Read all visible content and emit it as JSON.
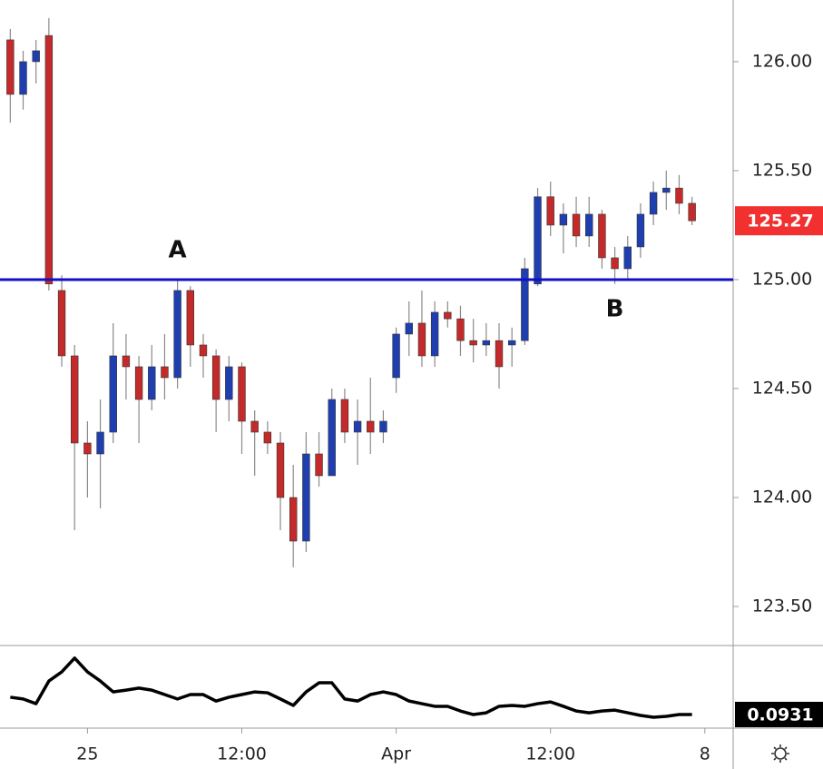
{
  "chart_data": {
    "type": "candlestick",
    "x": [
      -6,
      -5,
      -4,
      -3,
      -2,
      -1,
      0,
      1,
      2,
      3,
      4,
      5,
      6,
      7,
      8,
      9,
      10,
      11,
      12,
      13,
      14,
      15,
      16,
      17,
      18,
      19,
      20,
      21,
      22,
      23,
      24,
      25,
      26,
      27,
      28,
      29,
      30,
      31,
      32,
      33,
      34,
      35,
      36,
      37,
      38,
      39,
      40,
      41,
      42,
      43,
      44,
      45,
      46,
      47
    ],
    "open": [
      126.1,
      125.85,
      126.0,
      126.12,
      124.95,
      124.65,
      124.25,
      124.2,
      124.3,
      124.65,
      124.6,
      124.45,
      124.6,
      124.55,
      124.95,
      124.7,
      124.65,
      124.45,
      124.6,
      124.35,
      124.3,
      124.25,
      124.0,
      123.8,
      124.2,
      124.1,
      124.45,
      124.3,
      124.35,
      124.3,
      124.55,
      124.75,
      124.8,
      124.65,
      124.85,
      124.82,
      124.72,
      124.7,
      124.72,
      124.7,
      124.72,
      124.98,
      125.38,
      125.25,
      125.3,
      125.2,
      125.3,
      125.1,
      125.05,
      125.15,
      125.3,
      125.4,
      125.42,
      125.35
    ],
    "high": [
      126.15,
      126.05,
      126.1,
      126.2,
      125.02,
      124.7,
      124.35,
      124.45,
      124.8,
      124.75,
      124.65,
      124.7,
      124.75,
      125.0,
      124.97,
      124.75,
      124.68,
      124.65,
      124.62,
      124.4,
      124.35,
      124.3,
      124.15,
      124.3,
      124.3,
      124.5,
      124.5,
      124.45,
      124.55,
      124.4,
      124.78,
      124.9,
      124.95,
      124.9,
      124.9,
      124.88,
      124.82,
      124.8,
      124.8,
      124.78,
      125.1,
      125.42,
      125.45,
      125.35,
      125.38,
      125.38,
      125.32,
      125.15,
      125.2,
      125.35,
      125.45,
      125.5,
      125.48,
      125.38
    ],
    "low": [
      125.72,
      125.78,
      125.9,
      124.95,
      124.6,
      123.85,
      124.0,
      123.95,
      124.25,
      124.45,
      124.25,
      124.4,
      124.45,
      124.5,
      124.6,
      124.55,
      124.3,
      124.35,
      124.2,
      124.1,
      124.2,
      123.85,
      123.68,
      123.75,
      124.05,
      124.1,
      124.25,
      124.15,
      124.2,
      124.25,
      124.48,
      124.65,
      124.6,
      124.6,
      124.78,
      124.65,
      124.62,
      124.65,
      124.5,
      124.6,
      124.7,
      124.97,
      125.2,
      125.12,
      125.15,
      125.15,
      125.05,
      124.98,
      125.0,
      125.1,
      125.25,
      125.32,
      125.3,
      125.25
    ],
    "close": [
      125.85,
      126.0,
      126.05,
      124.98,
      124.65,
      124.25,
      124.2,
      124.3,
      124.65,
      124.6,
      124.45,
      124.6,
      124.55,
      124.95,
      124.7,
      124.65,
      124.45,
      124.6,
      124.35,
      124.3,
      124.25,
      124.0,
      123.8,
      124.2,
      124.1,
      124.45,
      124.3,
      124.35,
      124.3,
      124.35,
      124.75,
      124.8,
      124.65,
      124.85,
      124.82,
      124.72,
      124.7,
      124.72,
      124.6,
      124.72,
      125.05,
      125.38,
      125.25,
      125.3,
      125.2,
      125.3,
      125.1,
      125.05,
      125.15,
      125.3,
      125.4,
      125.42,
      125.35,
      125.27
    ],
    "up_color": "#1f3eb0",
    "down_color": "#c42a2a",
    "wick_color": "#8a8a8a",
    "xlim": [
      -6.8,
      50.2
    ],
    "xticks": [
      {
        "value": 0,
        "label": "25"
      },
      {
        "value": 12,
        "label": "12:00"
      },
      {
        "value": 24,
        "label": "Apr"
      },
      {
        "value": 36,
        "label": "12:00"
      },
      {
        "value": 48,
        "label": "8"
      }
    ],
    "ylim": [
      123.325,
      126.283
    ],
    "yticks": [
      {
        "value": 126,
        "label": "126.00"
      },
      {
        "value": 125.5,
        "label": "125.50"
      },
      {
        "value": 125,
        "label": "125.00"
      },
      {
        "value": 124.5,
        "label": "124.50"
      },
      {
        "value": 124,
        "label": "124.00"
      },
      {
        "value": 123.5,
        "label": "123.50"
      }
    ],
    "hline": {
      "value": 125,
      "color": "#1010c8"
    },
    "last_price": {
      "value": 125.27,
      "label": "125.27",
      "color": "#f23030"
    },
    "annotations": [
      {
        "text": "A",
        "x": 7,
        "y": 125.0,
        "side": "above"
      },
      {
        "text": "B",
        "x": 41,
        "y": 124.98,
        "side": "below"
      }
    ],
    "indicator": {
      "type": "line",
      "color": "#000000",
      "ylim": [
        0.053,
        0.3246
      ],
      "values": [
        0.152,
        0.146,
        0.13,
        0.207,
        0.238,
        0.285,
        0.238,
        0.207,
        0.17,
        0.176,
        0.183,
        0.176,
        0.161,
        0.146,
        0.161,
        0.161,
        0.139,
        0.152,
        0.161,
        0.17,
        0.167,
        0.146,
        0.124,
        0.17,
        0.201,
        0.201,
        0.146,
        0.139,
        0.161,
        0.17,
        0.161,
        0.139,
        0.13,
        0.121,
        0.121,
        0.105,
        0.093,
        0.099,
        0.121,
        0.124,
        0.121,
        0.13,
        0.136,
        0.121,
        0.105,
        0.099,
        0.105,
        0.108,
        0.099,
        0.09,
        0.084,
        0.087,
        0.093,
        0.0931
      ],
      "last": {
        "value": 0.0931,
        "label": "0.0931",
        "color": "#000000"
      }
    }
  }
}
